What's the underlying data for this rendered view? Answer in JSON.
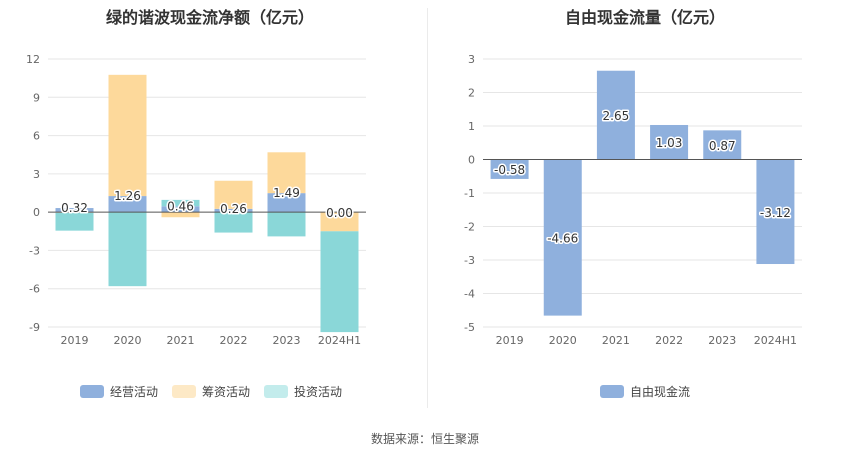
{
  "source_text": "数据来源：恒生聚源",
  "chart_data": [
    {
      "type": "bar",
      "stacked": true,
      "title": "绿的谐波现金流净额（亿元）",
      "categories": [
        "2019",
        "2020",
        "2021",
        "2022",
        "2023",
        "2024H1"
      ],
      "ylim": [
        -9,
        12
      ],
      "yticks": [
        12,
        9,
        6,
        3,
        0,
        -3,
        -6,
        -9
      ],
      "grid": true,
      "legend_position": "bottom",
      "series": [
        {
          "name": "经营活动",
          "color": "#8fb0dd",
          "values": [
            0.32,
            1.26,
            0.46,
            0.26,
            1.49,
            0.0
          ]
        },
        {
          "name": "筹资活动",
          "color": "#fdd99b",
          "values": [
            -0.05,
            9.5,
            -0.4,
            2.2,
            3.2,
            -1.5
          ]
        },
        {
          "name": "投资活动",
          "color": "#8ad7d8",
          "values": [
            -1.4,
            -5.8,
            0.5,
            -1.6,
            -1.9,
            -7.9
          ]
        }
      ],
      "data_labels": [
        "0.32",
        "1.26",
        "0.46",
        "0.26",
        "1.49",
        "0.00"
      ]
    },
    {
      "type": "bar",
      "title": "自由现金流量（亿元）",
      "categories": [
        "2019",
        "2020",
        "2021",
        "2022",
        "2023",
        "2024H1"
      ],
      "ylim": [
        -5,
        3
      ],
      "yticks": [
        3,
        2,
        1,
        0,
        -1,
        -2,
        -3,
        -4,
        -5
      ],
      "grid": true,
      "legend_position": "bottom",
      "series": [
        {
          "name": "自由现金流",
          "color": "#8fb0dd",
          "values": [
            -0.58,
            -4.66,
            2.65,
            1.03,
            0.87,
            -3.12
          ]
        }
      ],
      "data_labels": [
        "-0.58",
        "-4.66",
        "2.65",
        "1.03",
        "0.87",
        "-3.12"
      ]
    }
  ]
}
